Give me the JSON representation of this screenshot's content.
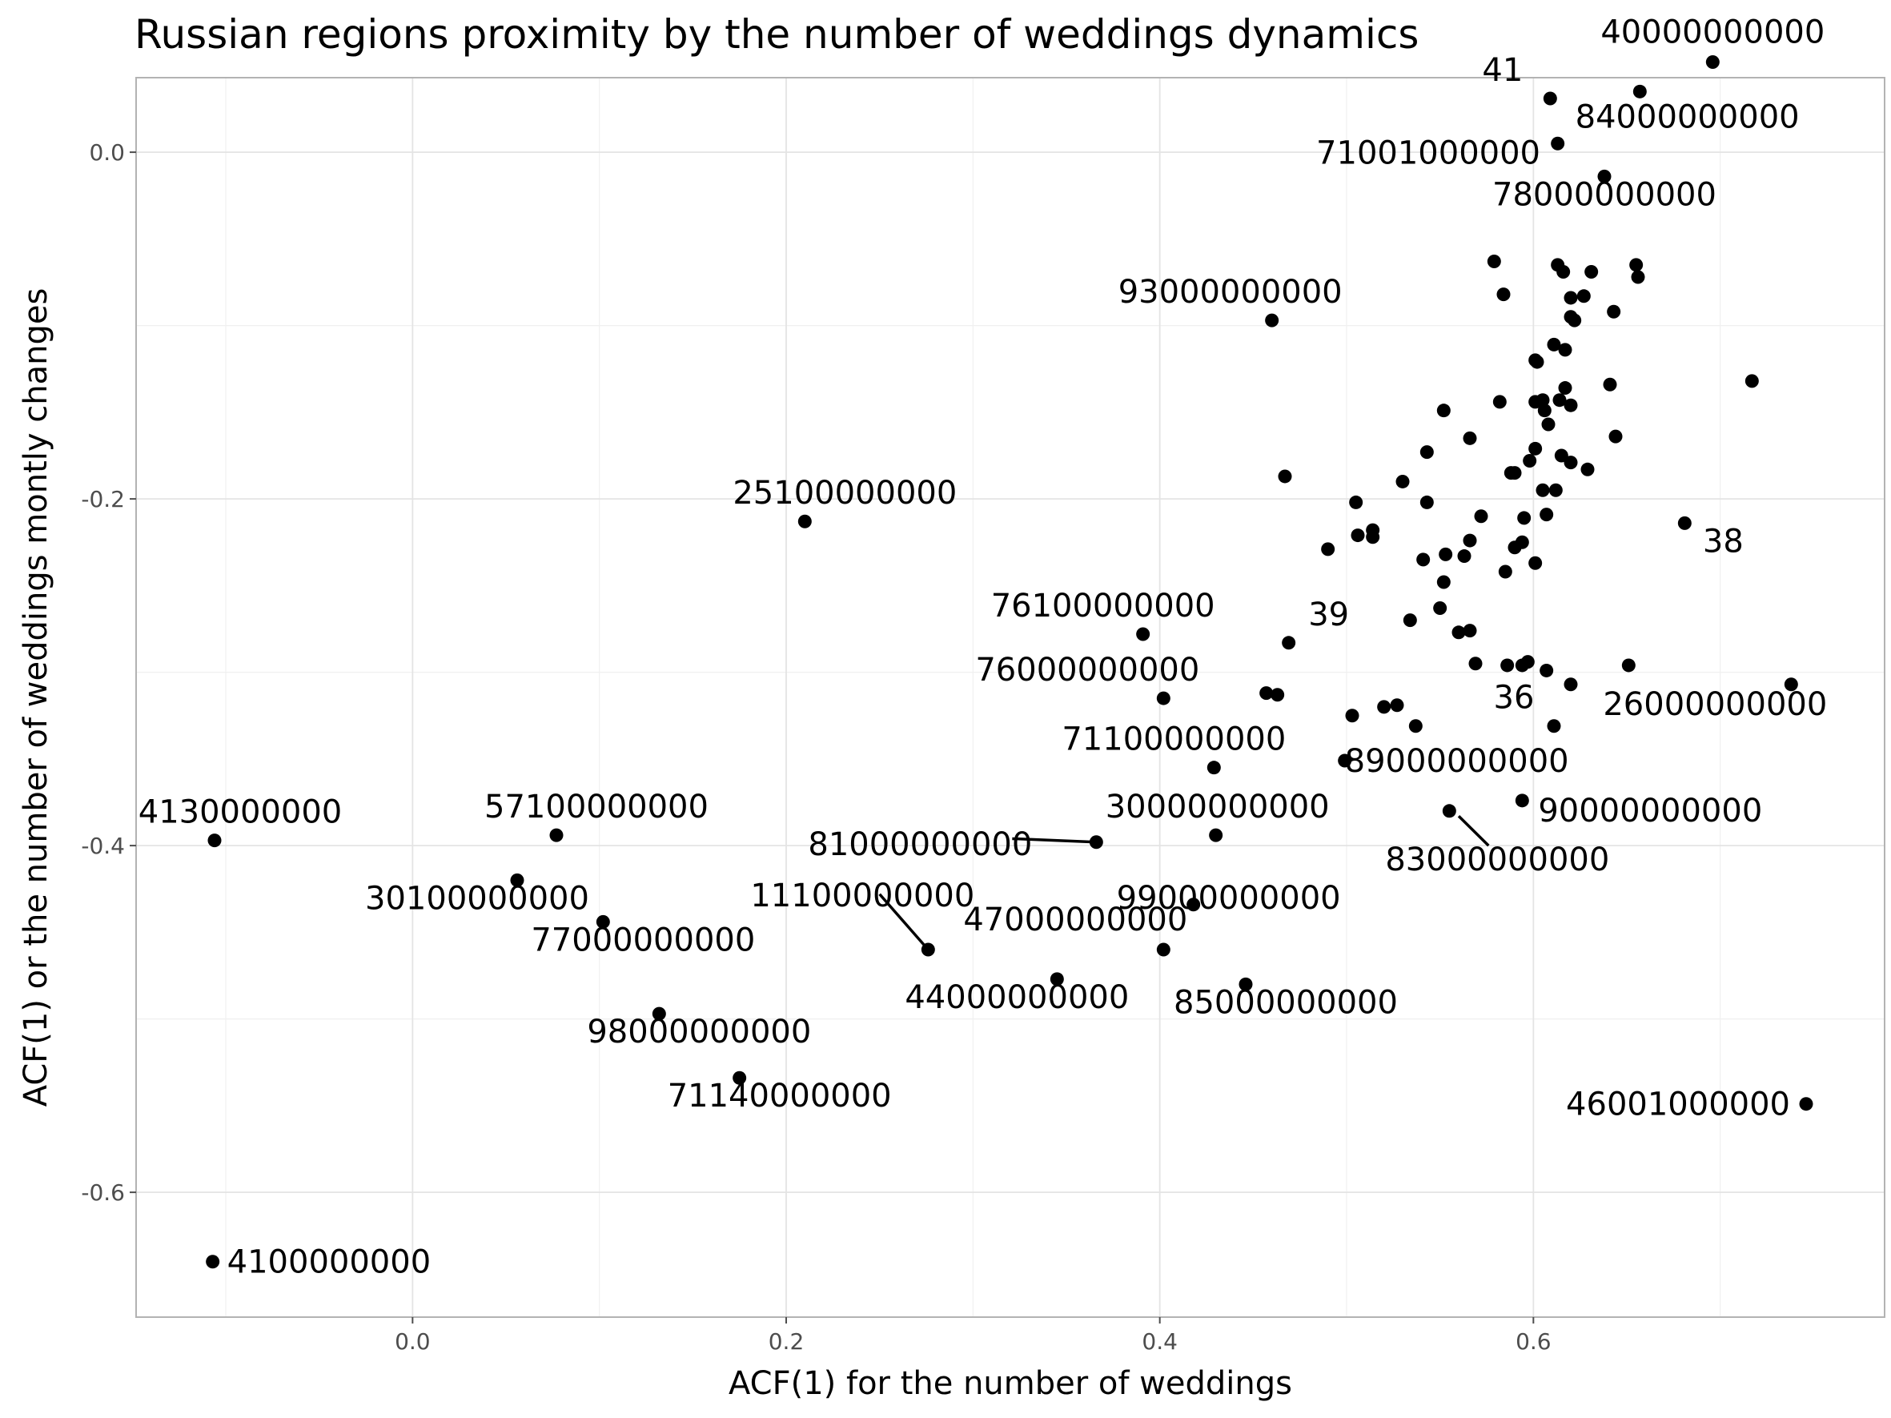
{
  "chart_data": {
    "type": "scatter",
    "title": "Russian regions proximity by the number of weddings dynamics",
    "xlabel": "ACF(1) for the number of weddings",
    "ylabel": "ACF(1) or the number of weddings montly changes",
    "xlim": [
      -0.148,
      0.788
    ],
    "ylim": [
      -0.672,
      0.043
    ],
    "xticks": [
      {
        "value": 0.0,
        "label": "0.0"
      },
      {
        "value": 0.2,
        "label": "0.2"
      },
      {
        "value": 0.4,
        "label": "0.4"
      },
      {
        "value": 0.6,
        "label": "0.6"
      }
    ],
    "yticks": [
      {
        "value": 0.0,
        "label": "0.0"
      },
      {
        "value": -0.2,
        "label": "-0.2"
      },
      {
        "value": -0.4,
        "label": "-0.4"
      },
      {
        "value": -0.6,
        "label": "-0.6"
      }
    ],
    "grid": true,
    "labeled_points": [
      {
        "x": 0.696,
        "y": 0.052,
        "label": "40000000000",
        "ldx": 0,
        "ldy": -24,
        "anchor": "middle"
      },
      {
        "x": 0.609,
        "y": 0.031,
        "label": "41",
        "ldx": -34,
        "ldy": -22,
        "anchor": "end"
      },
      {
        "x": 0.613,
        "y": 0.005,
        "label": "84000000000",
        "ldx": 22,
        "ldy": -20,
        "anchor": "start"
      },
      {
        "x": 0.638,
        "y": -0.014,
        "label": "71001000000",
        "ldx": -80,
        "ldy": -16,
        "anchor": "end"
      },
      {
        "x": 0.638,
        "y": -0.014,
        "label": "78000000000",
        "ldx": 0,
        "ldy": 36,
        "anchor": "middle"
      },
      {
        "x": 0.46,
        "y": -0.097,
        "label": "93000000000",
        "ldx": -52,
        "ldy": -22,
        "anchor": "middle"
      },
      {
        "x": 0.21,
        "y": -0.213,
        "label": "25100000000",
        "ldx": 50,
        "ldy": -22,
        "anchor": "middle"
      },
      {
        "x": 0.681,
        "y": -0.214,
        "label": "38",
        "ldx": 48,
        "ldy": 36,
        "anchor": "middle"
      },
      {
        "x": 0.391,
        "y": -0.278,
        "label": "76100000000",
        "ldx": -50,
        "ldy": -22,
        "anchor": "middle"
      },
      {
        "x": 0.469,
        "y": -0.283,
        "label": "39",
        "ldx": 50,
        "ldy": -22,
        "anchor": "middle"
      },
      {
        "x": 0.402,
        "y": -0.315,
        "label": "76000000000",
        "ldx": -95,
        "ldy": -22,
        "anchor": "middle"
      },
      {
        "x": 0.611,
        "y": -0.331,
        "label": "36",
        "ldx": -50,
        "ldy": -22,
        "anchor": "middle"
      },
      {
        "x": 0.738,
        "y": -0.307,
        "label": "26000000000",
        "ldx": -95,
        "ldy": 38,
        "anchor": "middle"
      },
      {
        "x": 0.429,
        "y": -0.355,
        "label": "71100000000",
        "ldx": -50,
        "ldy": -22,
        "anchor": "middle"
      },
      {
        "x": 0.499,
        "y": -0.351,
        "label": "89000000000",
        "ldx": 0,
        "ldy": 14,
        "anchor": "start"
      },
      {
        "x": -0.106,
        "y": -0.397,
        "label": "4130000000",
        "ldx": 32,
        "ldy": -22,
        "anchor": "middle"
      },
      {
        "x": 0.077,
        "y": -0.394,
        "label": "57100000000",
        "ldx": 50,
        "ldy": -22,
        "anchor": "middle"
      },
      {
        "x": 0.43,
        "y": -0.394,
        "label": "30000000000",
        "ldx": 2,
        "ldy": -22,
        "anchor": "middle"
      },
      {
        "x": 0.594,
        "y": -0.374,
        "label": "90000000000",
        "ldx": 20,
        "ldy": 26,
        "anchor": "start"
      },
      {
        "x": 0.366,
        "y": -0.398,
        "label": "81000000000",
        "ldx": -80,
        "ldy": 16,
        "anchor": "end"
      },
      {
        "x": 0.555,
        "y": -0.38,
        "label": "83000000000",
        "ldx": 60,
        "ldy": 74,
        "anchor": "middle"
      },
      {
        "x": 0.056,
        "y": -0.42,
        "label": "30100000000",
        "ldx": -50,
        "ldy": 36,
        "anchor": "middle"
      },
      {
        "x": 0.43,
        "y": -0.394,
        "label": "99000000000",
        "ldx": -124,
        "ldy": 92,
        "anchor": "start"
      },
      {
        "x": 0.102,
        "y": -0.444,
        "label": "77000000000",
        "ldx": 50,
        "ldy": 36,
        "anchor": "middle"
      },
      {
        "x": 0.276,
        "y": -0.46,
        "label": "11100000000",
        "ldx": -82,
        "ldy": -54,
        "anchor": "middle"
      },
      {
        "x": 0.402,
        "y": -0.46,
        "label": "47000000000",
        "ldx": -110,
        "ldy": -24,
        "anchor": "middle"
      },
      {
        "x": 0.345,
        "y": -0.477,
        "label": "44000000000",
        "ldx": -50,
        "ldy": 36,
        "anchor": "middle"
      },
      {
        "x": 0.446,
        "y": -0.48,
        "label": "85000000000",
        "ldx": 50,
        "ldy": 36,
        "anchor": "middle"
      },
      {
        "x": 0.132,
        "y": -0.497,
        "label": "98000000000",
        "ldx": 50,
        "ldy": 36,
        "anchor": "middle"
      },
      {
        "x": 0.175,
        "y": -0.534,
        "label": "71140000000",
        "ldx": 50,
        "ldy": 36,
        "anchor": "middle"
      },
      {
        "x": 0.746,
        "y": -0.549,
        "label": "46001000000",
        "ldx": -20,
        "ldy": 14,
        "anchor": "end"
      },
      {
        "x": -0.107,
        "y": -0.64,
        "label": "4100000000",
        "ldx": 18,
        "ldy": 14,
        "anchor": "start"
      }
    ],
    "leader_lines": [
      {
        "x1": 0.321,
        "y1": -0.396,
        "x2": 0.366,
        "y2": -0.398
      },
      {
        "x1": 0.25,
        "y1": -0.428,
        "x2": 0.276,
        "y2": -0.46
      },
      {
        "x1": 0.56,
        "y1": -0.383,
        "x2": 0.576,
        "y2": -0.4
      }
    ],
    "unlabeled_points": [
      [
        0.657,
        0.035
      ],
      [
        0.613,
        -0.065
      ],
      [
        0.616,
        -0.069
      ],
      [
        0.655,
        -0.065
      ],
      [
        0.656,
        -0.072
      ],
      [
        0.579,
        -0.063
      ],
      [
        0.584,
        -0.082
      ],
      [
        0.631,
        -0.069
      ],
      [
        0.62,
        -0.084
      ],
      [
        0.627,
        -0.083
      ],
      [
        0.62,
        -0.095
      ],
      [
        0.622,
        -0.097
      ],
      [
        0.643,
        -0.092
      ],
      [
        0.611,
        -0.111
      ],
      [
        0.617,
        -0.114
      ],
      [
        0.601,
        -0.12
      ],
      [
        0.602,
        -0.121
      ],
      [
        0.641,
        -0.134
      ],
      [
        0.717,
        -0.132
      ],
      [
        0.617,
        -0.136
      ],
      [
        0.582,
        -0.144
      ],
      [
        0.601,
        -0.144
      ],
      [
        0.614,
        -0.143
      ],
      [
        0.605,
        -0.143
      ],
      [
        0.62,
        -0.146
      ],
      [
        0.606,
        -0.149
      ],
      [
        0.552,
        -0.149
      ],
      [
        0.608,
        -0.157
      ],
      [
        0.566,
        -0.165
      ],
      [
        0.644,
        -0.164
      ],
      [
        0.543,
        -0.173
      ],
      [
        0.601,
        -0.171
      ],
      [
        0.615,
        -0.175
      ],
      [
        0.598,
        -0.178
      ],
      [
        0.62,
        -0.179
      ],
      [
        0.629,
        -0.183
      ],
      [
        0.588,
        -0.185
      ],
      [
        0.59,
        -0.185
      ],
      [
        0.467,
        -0.187
      ],
      [
        0.53,
        -0.19
      ],
      [
        0.605,
        -0.195
      ],
      [
        0.612,
        -0.195
      ],
      [
        0.505,
        -0.202
      ],
      [
        0.543,
        -0.202
      ],
      [
        0.572,
        -0.21
      ],
      [
        0.595,
        -0.211
      ],
      [
        0.607,
        -0.209
      ],
      [
        0.514,
        -0.218
      ],
      [
        0.506,
        -0.221
      ],
      [
        0.514,
        -0.222
      ],
      [
        0.566,
        -0.224
      ],
      [
        0.594,
        -0.225
      ],
      [
        0.59,
        -0.228
      ],
      [
        0.49,
        -0.229
      ],
      [
        0.553,
        -0.232
      ],
      [
        0.563,
        -0.233
      ],
      [
        0.541,
        -0.235
      ],
      [
        0.601,
        -0.237
      ],
      [
        0.585,
        -0.242
      ],
      [
        0.552,
        -0.248
      ],
      [
        0.55,
        -0.263
      ],
      [
        0.534,
        -0.27
      ],
      [
        0.56,
        -0.277
      ],
      [
        0.566,
        -0.276
      ],
      [
        0.597,
        -0.294
      ],
      [
        0.586,
        -0.296
      ],
      [
        0.594,
        -0.296
      ],
      [
        0.569,
        -0.295
      ],
      [
        0.607,
        -0.299
      ],
      [
        0.651,
        -0.296
      ],
      [
        0.62,
        -0.307
      ],
      [
        0.457,
        -0.312
      ],
      [
        0.463,
        -0.313
      ],
      [
        0.52,
        -0.32
      ],
      [
        0.527,
        -0.319
      ],
      [
        0.503,
        -0.325
      ],
      [
        0.537,
        -0.331
      ],
      [
        0.418,
        -0.434
      ]
    ]
  }
}
